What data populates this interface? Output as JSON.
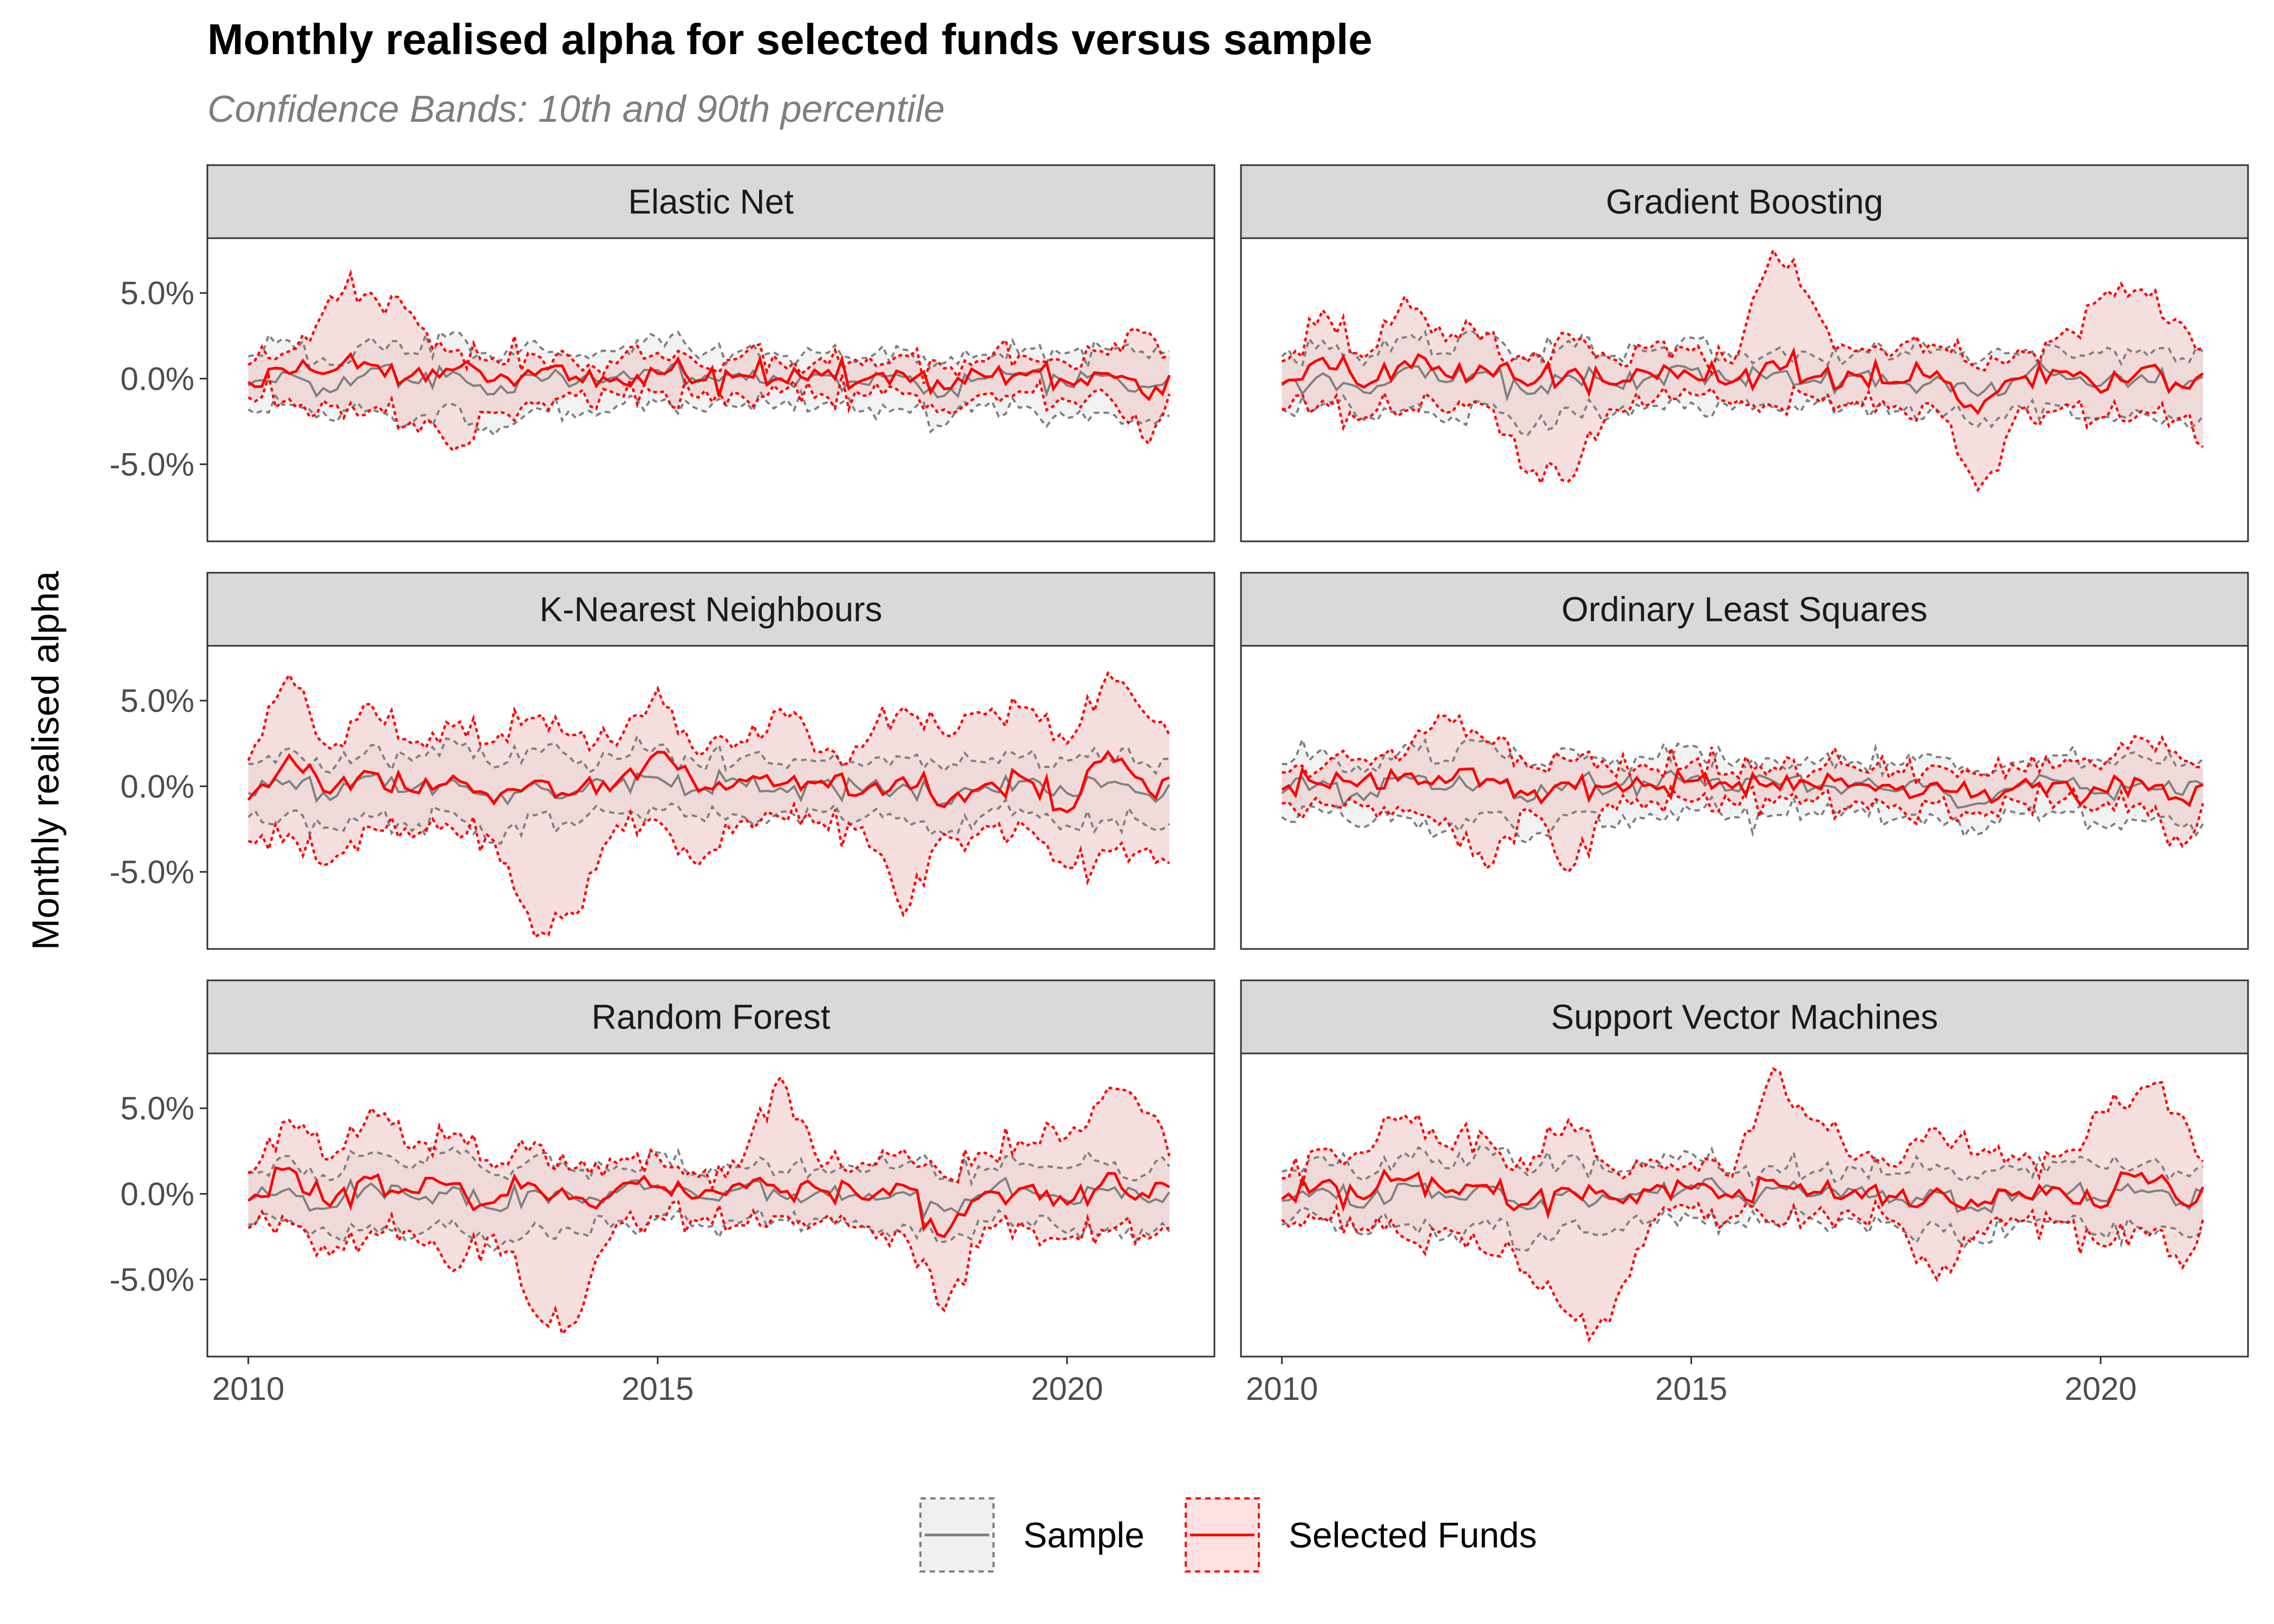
{
  "chart_data": {
    "type": "line",
    "title": "Monthly realised alpha for selected funds versus sample",
    "subtitle": "Confidence Bands: 10th and 90th percentile",
    "xlabel": "",
    "ylabel": "Monthly realised alpha",
    "x_ticks": [
      "2010",
      "2015",
      "2020"
    ],
    "y_ticks": [
      "5.0%",
      "0.0%",
      "-5.0%"
    ],
    "xlim": [
      2009.5,
      2021.8
    ],
    "ylim": [
      -9.5,
      8.2
    ],
    "grid": false,
    "legend_position": "bottom",
    "legend": [
      {
        "label": "Sample",
        "color": "#7f7f7f",
        "fill": "#f0f0f0",
        "style": "solid"
      },
      {
        "label": "Selected Funds",
        "color": "#ff0000",
        "fill": "#fde0e0",
        "style": "solid"
      }
    ],
    "colors": {
      "sample": "#7f7f7f",
      "selected": "#ff0000",
      "selected_band": "#ecc4c4",
      "strip_bg": "#d9d9d9"
    },
    "sample_anchor": {
      "x": [
        2010.0,
        2010.5,
        2011.0,
        2011.5,
        2012.0,
        2012.5,
        2013.0,
        2013.5,
        2014.0,
        2014.5,
        2015.0,
        2015.5,
        2016.0,
        2016.5,
        2017.0,
        2017.5,
        2018.0,
        2018.5,
        2019.0,
        2019.5,
        2020.0,
        2020.5,
        2021.0,
        2021.25
      ],
      "median": [
        -0.4,
        0.3,
        -0.8,
        0.6,
        -0.2,
        0.4,
        -0.9,
        0.2,
        -0.3,
        0.1,
        0.5,
        -0.2,
        0.3,
        -0.1,
        0.2,
        -0.3,
        0.1,
        -1.0,
        0.0,
        0.3,
        -0.4,
        0.2,
        -0.5,
        0.1
      ],
      "p10": [
        -1.8,
        -1.5,
        -2.4,
        -1.8,
        -2.6,
        -1.5,
        -3.3,
        -1.7,
        -2.3,
        -1.6,
        -1.4,
        -1.8,
        -1.7,
        -1.5,
        -1.5,
        -1.9,
        -1.8,
        -2.8,
        -1.6,
        -1.6,
        -2.3,
        -2.0,
        -2.4,
        -2.2
      ],
      "p90": [
        1.3,
        2.2,
        0.8,
        2.4,
        1.5,
        2.7,
        1.1,
        2.2,
        1.3,
        1.6,
        2.4,
        1.2,
        1.6,
        1.3,
        1.5,
        1.2,
        1.7,
        0.9,
        1.4,
        1.8,
        1.5,
        1.7,
        1.2,
        1.6
      ]
    },
    "panels": [
      {
        "name": "Elastic Net",
        "selected": {
          "x": [
            2010.0,
            2010.5,
            2011.0,
            2011.5,
            2012.0,
            2012.5,
            2013.0,
            2013.5,
            2014.0,
            2014.5,
            2015.0,
            2015.5,
            2016.0,
            2016.5,
            2017.0,
            2017.5,
            2018.0,
            2018.5,
            2019.0,
            2019.5,
            2020.0,
            2020.5,
            2021.0,
            2021.25
          ],
          "median": [
            -0.2,
            0.3,
            0.4,
            0.8,
            0.2,
            0.5,
            -0.1,
            0.2,
            0.1,
            0.0,
            0.3,
            -0.1,
            0.2,
            0.0,
            0.2,
            -0.1,
            0.3,
            -0.6,
            0.1,
            0.2,
            -0.2,
            0.3,
            -1.2,
            0.2
          ],
          "p10": [
            -1.1,
            -1.2,
            -1.6,
            -1.8,
            -2.5,
            -4.2,
            -2.0,
            -1.5,
            -1.0,
            -0.9,
            -0.8,
            -1.1,
            -0.9,
            -0.8,
            -0.9,
            -1.0,
            -0.9,
            -1.8,
            -0.9,
            -0.8,
            -1.3,
            -1.0,
            -3.8,
            -0.9
          ],
          "p90": [
            0.8,
            1.6,
            4.8,
            5.0,
            3.8,
            1.6,
            1.2,
            1.4,
            0.9,
            0.9,
            1.5,
            0.8,
            1.2,
            0.9,
            1.2,
            0.8,
            1.4,
            0.6,
            1.0,
            1.3,
            0.9,
            1.4,
            2.7,
            1.3
          ]
        }
      },
      {
        "name": "Gradient Boosting",
        "selected": {
          "x": [
            2010.0,
            2010.5,
            2011.0,
            2011.5,
            2012.0,
            2012.5,
            2013.0,
            2013.5,
            2014.0,
            2014.5,
            2015.0,
            2015.5,
            2016.0,
            2016.5,
            2017.0,
            2017.5,
            2018.0,
            2018.5,
            2019.0,
            2019.5,
            2020.0,
            2020.5,
            2021.0,
            2021.25
          ],
          "median": [
            -0.3,
            1.2,
            -0.5,
            1.0,
            0.2,
            0.5,
            -0.4,
            0.4,
            -0.3,
            0.3,
            0.2,
            -0.2,
            1.0,
            0.1,
            0.2,
            -0.2,
            0.4,
            -2.0,
            0.0,
            0.4,
            -0.8,
            0.6,
            -0.5,
            0.3
          ],
          "p10": [
            -1.8,
            -1.3,
            -2.3,
            -1.9,
            -2.0,
            -1.6,
            -5.5,
            -6.0,
            -1.8,
            -1.5,
            -0.9,
            -1.5,
            -1.6,
            -1.1,
            -1.3,
            -1.6,
            -1.9,
            -6.5,
            -1.8,
            -1.8,
            -2.3,
            -1.9,
            -2.3,
            -4.0
          ],
          "p90": [
            1.0,
            4.0,
            1.2,
            4.8,
            2.2,
            2.6,
            1.0,
            2.6,
            1.2,
            1.8,
            1.6,
            0.9,
            7.5,
            4.3,
            1.6,
            1.6,
            1.9,
            0.6,
            1.7,
            2.5,
            4.7,
            5.2,
            3.2,
            1.8
          ]
        }
      },
      {
        "name": "K-Nearest Neighbours",
        "selected": {
          "x": [
            2010.0,
            2010.5,
            2011.0,
            2011.5,
            2012.0,
            2012.5,
            2013.0,
            2013.5,
            2014.0,
            2014.5,
            2015.0,
            2015.5,
            2016.0,
            2016.5,
            2017.0,
            2017.5,
            2018.0,
            2018.5,
            2019.0,
            2019.5,
            2020.0,
            2020.5,
            2021.0,
            2021.25
          ],
          "median": [
            -0.8,
            1.8,
            -0.4,
            0.8,
            -0.3,
            0.6,
            -1.0,
            0.3,
            -0.4,
            0.2,
            2.0,
            -0.3,
            0.4,
            0.1,
            0.3,
            -0.4,
            0.5,
            -1.2,
            0.1,
            0.4,
            -1.5,
            2.0,
            -0.3,
            0.5
          ],
          "p10": [
            -3.2,
            -2.8,
            -4.5,
            -2.4,
            -3.0,
            -2.5,
            -3.2,
            -8.8,
            -7.5,
            -2.3,
            -2.0,
            -4.6,
            -2.1,
            -1.8,
            -2.1,
            -2.4,
            -7.5,
            -2.8,
            -2.3,
            -2.4,
            -4.8,
            -3.8,
            -3.6,
            -4.5
          ],
          "p90": [
            1.5,
            6.5,
            2.2,
            4.8,
            2.5,
            3.5,
            2.6,
            4.0,
            3.0,
            2.4,
            5.7,
            1.8,
            2.6,
            4.5,
            2.0,
            2.3,
            4.6,
            3.0,
            4.2,
            4.6,
            2.5,
            6.6,
            4.0,
            3.0
          ]
        }
      },
      {
        "name": "Ordinary Least Squares",
        "selected": {
          "x": [
            2010.0,
            2010.5,
            2011.0,
            2011.5,
            2012.0,
            2012.5,
            2013.0,
            2013.5,
            2014.0,
            2014.5,
            2015.0,
            2015.5,
            2016.0,
            2016.5,
            2017.0,
            2017.5,
            2018.0,
            2018.5,
            2019.0,
            2019.5,
            2020.0,
            2020.5,
            2021.0,
            2021.25
          ],
          "median": [
            -0.2,
            0.1,
            0.4,
            0.7,
            0.2,
            0.4,
            -0.5,
            0.2,
            0.0,
            0.1,
            0.3,
            -0.1,
            0.2,
            0.0,
            0.1,
            -0.2,
            0.2,
            -0.5,
            0.1,
            0.2,
            -0.2,
            0.3,
            -0.8,
            0.1
          ],
          "p10": [
            -1.0,
            -1.1,
            -1.2,
            -1.5,
            -1.9,
            -4.8,
            -1.3,
            -5.0,
            -1.0,
            -0.9,
            -0.9,
            -1.0,
            -1.0,
            -0.9,
            -0.9,
            -1.1,
            -1.0,
            -1.5,
            -0.9,
            -0.9,
            -1.2,
            -1.0,
            -3.5,
            -1.0
          ],
          "p90": [
            0.8,
            1.1,
            1.6,
            1.8,
            4.1,
            2.6,
            1.2,
            1.5,
            1.0,
            1.0,
            1.4,
            0.8,
            1.1,
            0.9,
            1.1,
            0.9,
            1.2,
            0.7,
            1.0,
            1.2,
            1.0,
            2.8,
            1.5,
            1.1
          ]
        }
      },
      {
        "name": "Random Forest",
        "selected": {
          "x": [
            2010.0,
            2010.5,
            2011.0,
            2011.5,
            2012.0,
            2012.5,
            2013.0,
            2013.5,
            2014.0,
            2014.5,
            2015.0,
            2015.5,
            2016.0,
            2016.5,
            2017.0,
            2017.5,
            2018.0,
            2018.5,
            2019.0,
            2019.5,
            2020.0,
            2020.5,
            2021.0,
            2021.25
          ],
          "median": [
            -0.4,
            1.5,
            -0.7,
            0.9,
            0.1,
            0.6,
            -0.5,
            0.5,
            -0.2,
            0.3,
            0.4,
            -0.2,
            0.6,
            0.1,
            0.2,
            -0.3,
            0.5,
            -2.5,
            0.1,
            0.4,
            -0.6,
            1.2,
            -0.2,
            0.4
          ],
          "p10": [
            -2.0,
            -1.7,
            -3.6,
            -2.2,
            -2.2,
            -4.5,
            -2.4,
            -7.0,
            -7.5,
            -1.8,
            -1.3,
            -1.6,
            -1.8,
            -1.3,
            -1.6,
            -1.9,
            -2.3,
            -6.8,
            -1.9,
            -2.0,
            -2.6,
            -2.2,
            -2.6,
            -2.0
          ],
          "p90": [
            1.2,
            4.3,
            2.0,
            5.0,
            2.6,
            3.5,
            1.5,
            3.0,
            1.5,
            1.8,
            2.2,
            1.0,
            1.6,
            6.8,
            1.6,
            1.8,
            2.6,
            1.0,
            2.4,
            2.8,
            3.3,
            6.2,
            4.7,
            2.2
          ]
        }
      },
      {
        "name": "Support Vector Machines",
        "selected": {
          "x": [
            2010.0,
            2010.5,
            2011.0,
            2011.5,
            2012.0,
            2012.5,
            2013.0,
            2013.5,
            2014.0,
            2014.5,
            2015.0,
            2015.5,
            2016.0,
            2016.5,
            2017.0,
            2017.5,
            2018.0,
            2018.5,
            2019.0,
            2019.5,
            2020.0,
            2020.5,
            2021.0,
            2021.25
          ],
          "median": [
            -0.3,
            0.7,
            -0.3,
            0.8,
            0.1,
            0.5,
            -0.6,
            0.3,
            -0.2,
            0.2,
            0.3,
            -0.2,
            0.8,
            0.1,
            0.2,
            -0.2,
            0.3,
            -0.7,
            0.1,
            0.3,
            -0.8,
            1.2,
            -0.6,
            0.4
          ],
          "p10": [
            -1.5,
            -1.4,
            -2.0,
            -2.6,
            -2.0,
            -3.5,
            -4.6,
            -7.0,
            -7.5,
            -1.8,
            -0.9,
            -1.3,
            -1.6,
            -1.2,
            -1.3,
            -1.6,
            -5.0,
            -2.2,
            -1.6,
            -1.6,
            -3.0,
            -2.0,
            -4.3,
            -1.5
          ],
          "p90": [
            0.9,
            2.6,
            2.4,
            4.6,
            2.8,
            3.3,
            1.4,
            4.3,
            1.6,
            2.0,
            1.8,
            1.0,
            7.3,
            4.3,
            2.0,
            1.6,
            3.8,
            2.3,
            2.0,
            2.2,
            4.8,
            6.2,
            4.6,
            1.9
          ]
        }
      }
    ]
  }
}
